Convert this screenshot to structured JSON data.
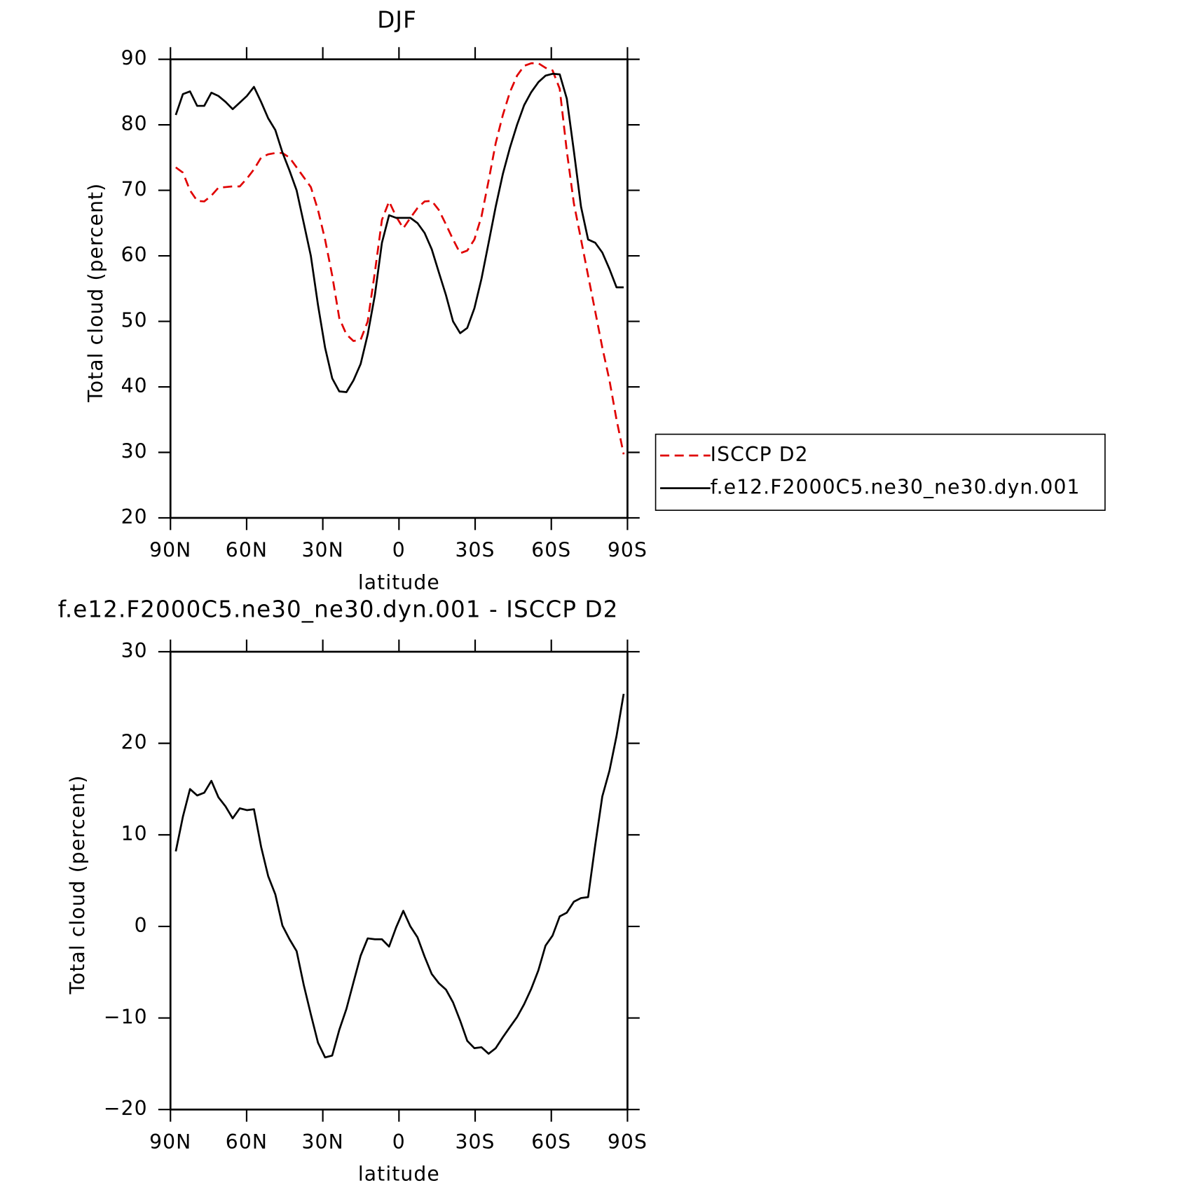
{
  "chart_data": [
    {
      "type": "line",
      "title": "DJF",
      "x_label": "latitude",
      "y_label": "Total cloud (percent)",
      "xlim": [
        90,
        -90
      ],
      "ylim": [
        20,
        90
      ],
      "xticks": [
        {
          "value": 90,
          "label": "90N"
        },
        {
          "value": 60,
          "label": "60N"
        },
        {
          "value": 30,
          "label": "30N"
        },
        0,
        {
          "value": -30,
          "label": "30S"
        },
        {
          "value": -60,
          "label": "60S"
        },
        {
          "value": -90,
          "label": "90S"
        }
      ],
      "yticks": [
        20,
        30,
        40,
        50,
        60,
        70,
        80,
        90
      ],
      "legend": "right",
      "x": [
        87.9,
        85.1,
        82.3,
        79.5,
        76.7,
        73.9,
        71.1,
        68.3,
        65.5,
        62.7,
        59.9,
        57.1,
        54.3,
        51.5,
        48.7,
        45.9,
        43.1,
        40.3,
        37.5,
        34.7,
        31.9,
        29.1,
        26.3,
        23.5,
        20.7,
        17.9,
        15.1,
        12.3,
        9.5,
        6.7,
        3.9,
        1.1,
        -1.7,
        -4.5,
        -7.3,
        -10.1,
        -12.9,
        -15.7,
        -18.5,
        -21.3,
        -24.1,
        -26.9,
        -29.7,
        -32.5,
        -35.3,
        -38.1,
        -40.9,
        -43.7,
        -46.5,
        -49.3,
        -52.1,
        -54.9,
        -57.7,
        -60.5,
        -63.3,
        -66.1,
        -68.9,
        -71.7,
        -74.5,
        -77.3,
        -80.1,
        -82.9,
        -85.7,
        -88.5
      ],
      "series": [
        {
          "name": "ISCCP D2",
          "color": "#e00000",
          "style": "dashed",
          "values": [
            73.5,
            72.7,
            70,
            68.4,
            68.3,
            69.2,
            70.4,
            70.5,
            70.6,
            70.6,
            71.8,
            73.2,
            75,
            75.5,
            75.7,
            75.7,
            75,
            73.5,
            72,
            70.5,
            67,
            62.5,
            57,
            50.5,
            48,
            47,
            47.2,
            50,
            57.5,
            65.5,
            68.3,
            66,
            64.2,
            65.8,
            67.3,
            68.3,
            68.4,
            67,
            64.8,
            62.5,
            60.4,
            60.8,
            62.5,
            66,
            71.5,
            77.2,
            81.5,
            85,
            87.5,
            89,
            89.4,
            89.4,
            88.7,
            88.3,
            85.5,
            76,
            68,
            62.5,
            57,
            51.5,
            46,
            41,
            35,
            29.7
          ]
        },
        {
          "name": "f.e12.F2000C5.ne30_ne30.dyn.001",
          "color": "#000000",
          "style": "solid",
          "values": [
            81.5,
            84.7,
            85.1,
            82.9,
            82.9,
            84.9,
            84.4,
            83.5,
            82.4,
            83.4,
            84.4,
            85.8,
            83.5,
            81,
            79.2,
            75.8,
            73,
            70,
            65,
            60,
            52.5,
            46,
            41.3,
            39.3,
            39.2,
            41,
            43.5,
            48,
            54,
            62,
            66.2,
            65.8,
            65.8,
            65.8,
            65,
            63.5,
            61,
            57.5,
            54,
            50,
            48.2,
            49,
            52,
            56.5,
            62,
            67.5,
            72.5,
            76.5,
            80,
            83,
            85,
            86.5,
            87.5,
            87.8,
            87.7,
            84,
            76,
            67.5,
            62.5,
            62,
            60.5,
            58,
            55.2,
            55.2
          ]
        }
      ]
    },
    {
      "type": "line",
      "title": "f.e12.F2000C5.ne30_ne30.dyn.001 - ISCCP D2",
      "x_label": "latitude",
      "y_label": "Total cloud (percent)",
      "xlim": [
        90,
        -90
      ],
      "ylim": [
        -20,
        30
      ],
      "xticks": [
        {
          "value": 90,
          "label": "90N"
        },
        {
          "value": 60,
          "label": "60N"
        },
        {
          "value": 30,
          "label": "30N"
        },
        0,
        {
          "value": -30,
          "label": "30S"
        },
        {
          "value": -60,
          "label": "60S"
        },
        {
          "value": -90,
          "label": "90S"
        }
      ],
      "yticks": [
        {
          "value": -20,
          "label": "−20"
        },
        {
          "value": -10,
          "label": "−10"
        },
        0,
        10,
        20,
        30
      ],
      "x": [
        87.9,
        85.1,
        82.3,
        79.5,
        76.7,
        73.9,
        71.1,
        68.3,
        65.5,
        62.7,
        59.9,
        57.1,
        54.3,
        51.5,
        48.7,
        45.9,
        43.1,
        40.3,
        37.5,
        34.7,
        31.9,
        29.1,
        26.3,
        23.5,
        20.7,
        17.9,
        15.1,
        12.3,
        9.5,
        6.7,
        3.9,
        1.1,
        -1.7,
        -4.5,
        -7.3,
        -10.1,
        -12.9,
        -15.7,
        -18.5,
        -21.3,
        -24.1,
        -26.9,
        -29.7,
        -32.5,
        -35.3,
        -38.1,
        -40.9,
        -43.7,
        -46.5,
        -49.3,
        -52.1,
        -54.9,
        -57.7,
        -60.5,
        -63.3,
        -66.1,
        -68.9,
        -71.7,
        -74.5,
        -77.3,
        -80.1,
        -82.9,
        -85.7,
        -88.5
      ],
      "color": "#000000",
      "values": [
        8.2,
        12,
        15,
        14.3,
        14.6,
        15.9,
        14.1,
        13.1,
        11.8,
        12.9,
        12.7,
        12.8,
        8.7,
        5.5,
        3.5,
        0.1,
        -1.4,
        -2.7,
        -6.4,
        -9.6,
        -12.7,
        -14.3,
        -14.1,
        -11.3,
        -9,
        -6.1,
        -3.2,
        -1.3,
        -1.4,
        -1.4,
        -2.2,
        -0.1,
        1.7,
        0,
        -1.2,
        -3.3,
        -5.2,
        -6.2,
        -6.9,
        -8.3,
        -10.3,
        -12.5,
        -13.3,
        -13.2,
        -13.9,
        -13.3,
        -12.1,
        -11,
        -9.9,
        -8.5,
        -6.8,
        -4.8,
        -2.1,
        -1,
        1.1,
        1.5,
        2.7,
        3.1,
        3.2,
        8.9,
        14.2,
        17,
        20.8,
        25.4
      ]
    }
  ]
}
